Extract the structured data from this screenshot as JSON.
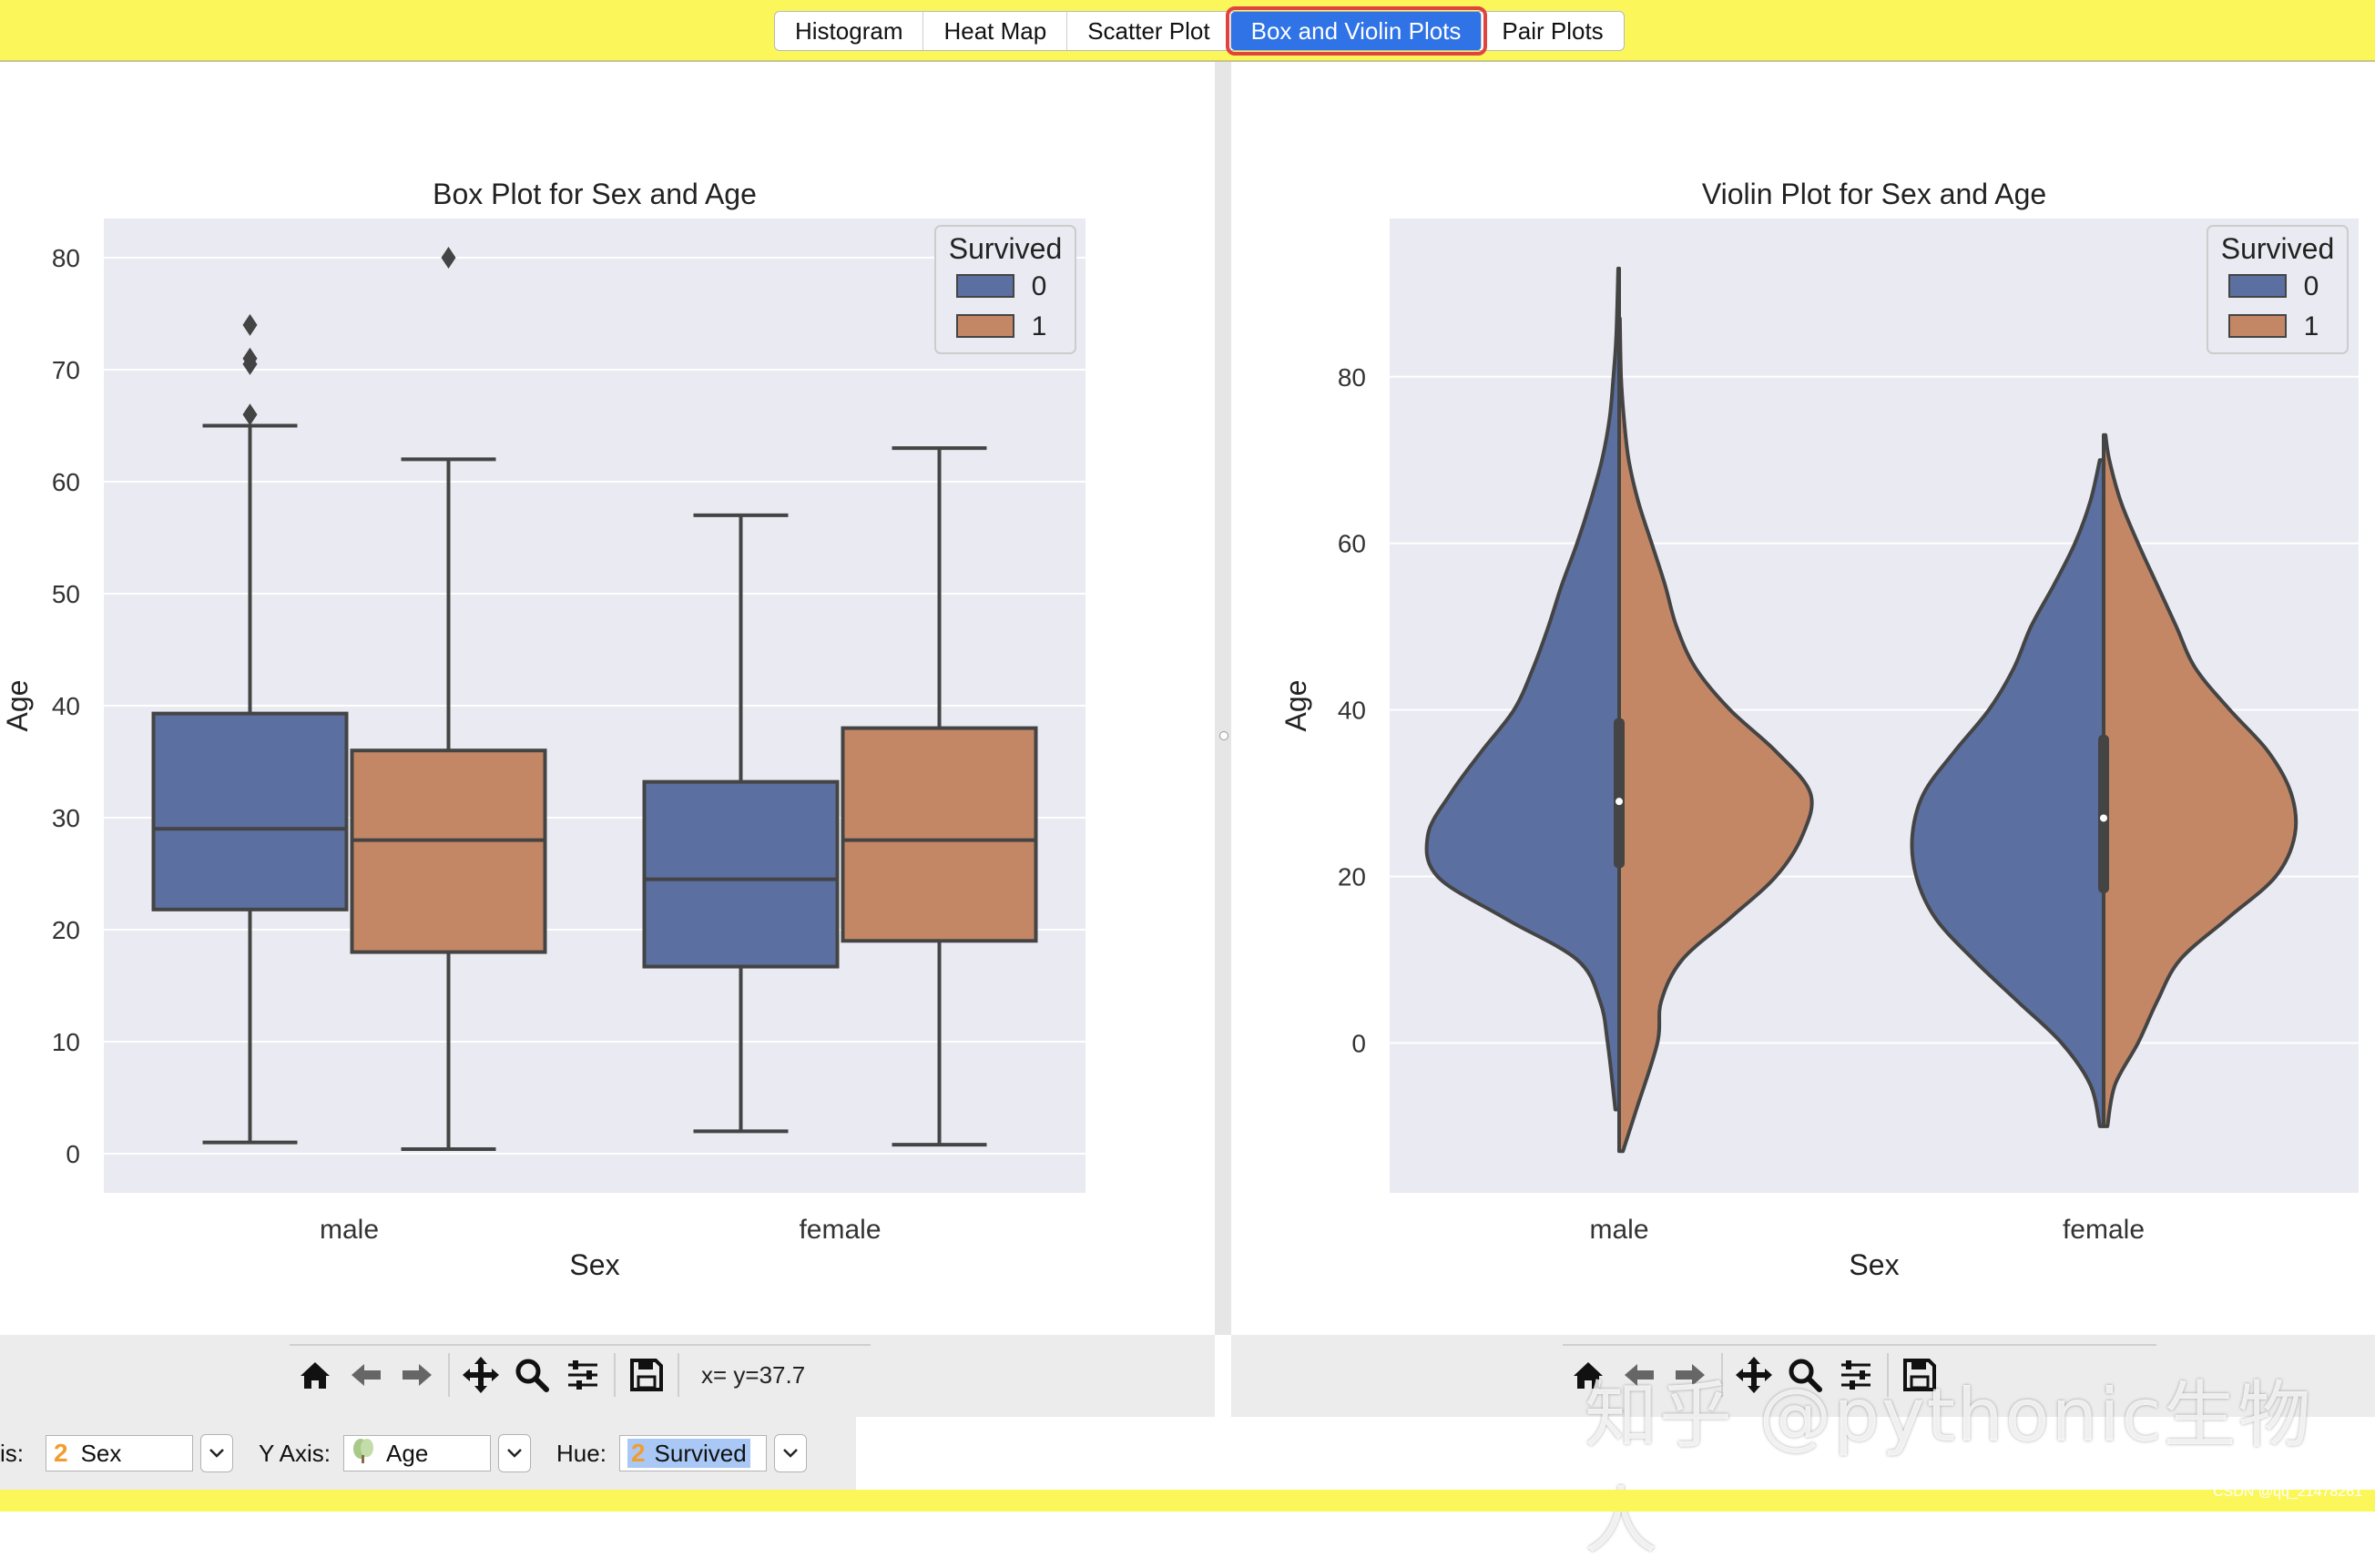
{
  "tabs": {
    "items": [
      "Histogram",
      "Heat Map",
      "Scatter Plot",
      "Box and Violin Plots",
      "Pair Plots"
    ],
    "active": "Box and Violin Plots"
  },
  "toolbar": {
    "coords": "x= y=37.7"
  },
  "controls": {
    "x_label": "is:",
    "x_value": "Sex",
    "y_label": "Y Axis:",
    "y_value": "Age",
    "hue_label": "Hue:",
    "hue_value": "Survived"
  },
  "watermark": "知乎 @pythonic生物人",
  "credit": "CSDN @qq_21478261",
  "icons": {
    "toolbar": [
      "home-icon",
      "back-arrow-icon",
      "forward-arrow-icon",
      "pan-icon",
      "zoom-icon",
      "configure-icon",
      "save-icon"
    ],
    "categorical": "2",
    "continuous": "tree-icon"
  },
  "colors": {
    "survived_0": "#5b6fa0",
    "survived_1": "#c38766",
    "axes_bg": "#eaeaf2",
    "active_tab": "#2f73e6",
    "window_bar": "#fbf75a"
  },
  "chart_data": [
    {
      "type": "box",
      "title": "Box Plot for Sex and Age",
      "xlabel": "Sex",
      "ylabel": "Age",
      "categories": [
        "male",
        "female"
      ],
      "legend": {
        "title": "Survived",
        "entries": [
          "0",
          "1"
        ],
        "placement": "top-right"
      },
      "ylim": [
        -3.5,
        83.5
      ],
      "yticks": [
        0,
        10,
        20,
        30,
        40,
        50,
        60,
        70,
        80
      ],
      "grid": true,
      "series": [
        {
          "name": "0",
          "color": "#5b6fa0",
          "stats": [
            {
              "category": "male",
              "min": 1,
              "q1": 21.8,
              "median": 29,
              "q3": 39.3,
              "max": 65,
              "outliers": [
                66,
                70.5,
                71,
                74
              ]
            },
            {
              "category": "female",
              "min": 2,
              "q1": 16.7,
              "median": 24.5,
              "q3": 33.2,
              "max": 57,
              "outliers": []
            }
          ]
        },
        {
          "name": "1",
          "color": "#c38766",
          "stats": [
            {
              "category": "male",
              "min": 0.4,
              "q1": 18,
              "median": 28,
              "q3": 36,
              "max": 62,
              "outliers": [
                80
              ]
            },
            {
              "category": "female",
              "min": 0.8,
              "q1": 19,
              "median": 28,
              "q3": 38,
              "max": 63,
              "outliers": []
            }
          ]
        }
      ]
    },
    {
      "type": "violin",
      "title": "Violin Plot for Sex and Age",
      "xlabel": "Sex",
      "ylabel": "Age",
      "categories": [
        "male",
        "female"
      ],
      "legend": {
        "title": "Survived",
        "entries": [
          "0",
          "1"
        ],
        "placement": "top-right"
      },
      "ylim": [
        -18,
        99
      ],
      "yticks": [
        0,
        20,
        40,
        60,
        80
      ],
      "grid": true,
      "split": true,
      "series": [
        {
          "name": "0",
          "color": "#5b6fa0",
          "profiles": [
            {
              "category": "male",
              "range": [
                -8,
                93
              ],
              "density": [
                [
                  -8,
                  0.02
                ],
                [
                  0,
                  0.06
                ],
                [
                  5,
                  0.1
                ],
                [
                  10,
                  0.22
                ],
                [
                  15,
                  0.6
                ],
                [
                  20,
                  0.95
                ],
                [
                  25,
                  1.0
                ],
                [
                  30,
                  0.88
                ],
                [
                  35,
                  0.72
                ],
                [
                  40,
                  0.55
                ],
                [
                  45,
                  0.45
                ],
                [
                  50,
                  0.37
                ],
                [
                  55,
                  0.3
                ],
                [
                  60,
                  0.22
                ],
                [
                  65,
                  0.15
                ],
                [
                  70,
                  0.09
                ],
                [
                  75,
                  0.05
                ],
                [
                  80,
                  0.03
                ],
                [
                  85,
                  0.015
                ],
                [
                  93,
                  0.005
                ]
              ]
            },
            {
              "category": "female",
              "range": [
                -10,
                70
              ],
              "density": [
                [
                  -10,
                  0.02
                ],
                [
                  -5,
                  0.07
                ],
                [
                  0,
                  0.22
                ],
                [
                  5,
                  0.45
                ],
                [
                  10,
                  0.68
                ],
                [
                  15,
                  0.88
                ],
                [
                  20,
                  0.98
                ],
                [
                  25,
                  1.0
                ],
                [
                  30,
                  0.94
                ],
                [
                  35,
                  0.78
                ],
                [
                  40,
                  0.6
                ],
                [
                  45,
                  0.47
                ],
                [
                  50,
                  0.38
                ],
                [
                  55,
                  0.26
                ],
                [
                  60,
                  0.15
                ],
                [
                  65,
                  0.07
                ],
                [
                  70,
                  0.02
                ]
              ]
            }
          ],
          "quartiles": [
            {
              "category": "male",
              "q1": 21,
              "median": 29,
              "q3": 39
            },
            {
              "category": "female",
              "q1": 18,
              "median": 27,
              "q3": 37
            }
          ]
        },
        {
          "name": "1",
          "color": "#c38766",
          "profiles": [
            {
              "category": "male",
              "range": [
                -13,
                87
              ],
              "density": [
                [
                  -13,
                  0.02
                ],
                [
                  -8,
                  0.09
                ],
                [
                  0,
                  0.2
                ],
                [
                  5,
                  0.22
                ],
                [
                  10,
                  0.33
                ],
                [
                  15,
                  0.58
                ],
                [
                  20,
                  0.82
                ],
                [
                  25,
                  0.96
                ],
                [
                  30,
                  1.0
                ],
                [
                  35,
                  0.82
                ],
                [
                  40,
                  0.58
                ],
                [
                  45,
                  0.4
                ],
                [
                  50,
                  0.3
                ],
                [
                  55,
                  0.24
                ],
                [
                  60,
                  0.17
                ],
                [
                  65,
                  0.1
                ],
                [
                  70,
                  0.05
                ],
                [
                  75,
                  0.025
                ],
                [
                  80,
                  0.01
                ],
                [
                  87,
                  0.004
                ]
              ]
            },
            {
              "category": "female",
              "range": [
                -10,
                73
              ],
              "density": [
                [
                  -10,
                  0.02
                ],
                [
                  -5,
                  0.06
                ],
                [
                  0,
                  0.18
                ],
                [
                  5,
                  0.28
                ],
                [
                  10,
                  0.4
                ],
                [
                  15,
                  0.65
                ],
                [
                  20,
                  0.9
                ],
                [
                  25,
                  1.0
                ],
                [
                  30,
                  0.98
                ],
                [
                  35,
                  0.86
                ],
                [
                  40,
                  0.66
                ],
                [
                  45,
                  0.48
                ],
                [
                  50,
                  0.38
                ],
                [
                  55,
                  0.28
                ],
                [
                  60,
                  0.18
                ],
                [
                  65,
                  0.09
                ],
                [
                  70,
                  0.03
                ],
                [
                  73,
                  0.01
                ]
              ]
            }
          ],
          "quartiles": [
            {
              "category": "male",
              "q1": 21,
              "median": 29,
              "q3": 39
            },
            {
              "category": "female",
              "q1": 18,
              "median": 27,
              "q3": 37
            }
          ]
        }
      ]
    }
  ]
}
